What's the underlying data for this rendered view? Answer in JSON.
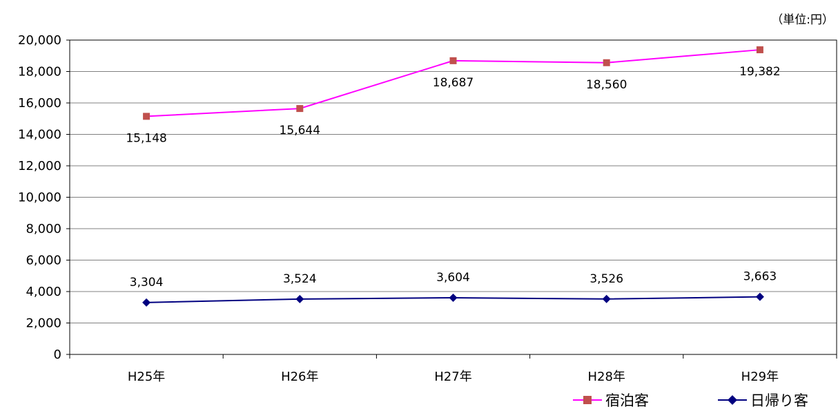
{
  "chart_data": {
    "type": "line",
    "unit_note": "（単位:円）",
    "categories": [
      "H25年",
      "H26年",
      "H27年",
      "H28年",
      "H29年"
    ],
    "ylim": [
      0,
      20000
    ],
    "yticks": [
      0,
      2000,
      4000,
      6000,
      8000,
      10000,
      12000,
      14000,
      16000,
      18000,
      20000
    ],
    "ytick_labels": [
      "0",
      "2,000",
      "4,000",
      "6,000",
      "8,000",
      "10,000",
      "12,000",
      "14,000",
      "16,000",
      "18,000",
      "20,000"
    ],
    "grid": true,
    "legend_position": "bottom-right",
    "series": [
      {
        "name": "宿泊客",
        "values": [
          15148,
          15644,
          18687,
          18560,
          19382
        ],
        "labels": [
          "15,148",
          "15,644",
          "18,687",
          "18,560",
          "19,382"
        ],
        "line_color": "#FF00FF",
        "marker_color": "#C0504D",
        "marker": "square"
      },
      {
        "name": "日帰り客",
        "values": [
          3304,
          3524,
          3604,
          3526,
          3663
        ],
        "labels": [
          "3,304",
          "3,524",
          "3,604",
          "3,526",
          "3,663"
        ],
        "line_color": "#000080",
        "marker_color": "#000080",
        "marker": "diamond"
      }
    ]
  }
}
